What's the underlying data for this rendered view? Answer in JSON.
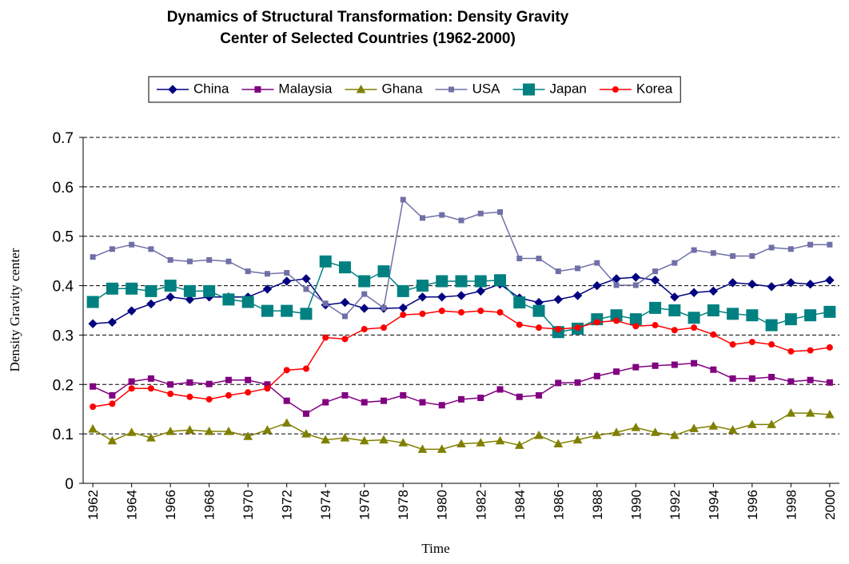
{
  "chart_data": {
    "type": "line",
    "title": "Dynamics of Structural Transformation: Density Gravity Center of Selected Countries (1962-2000)",
    "xlabel": "Time",
    "ylabel": "Density Gravity center",
    "x": [
      1962,
      1963,
      1964,
      1965,
      1966,
      1967,
      1968,
      1969,
      1970,
      1971,
      1972,
      1973,
      1974,
      1975,
      1976,
      1977,
      1978,
      1979,
      1980,
      1981,
      1982,
      1983,
      1984,
      1985,
      1986,
      1987,
      1988,
      1989,
      1990,
      1991,
      1992,
      1993,
      1994,
      1995,
      1996,
      1997,
      1998,
      1999,
      2000
    ],
    "xlim": [
      1961.5,
      2000.5
    ],
    "xticks": [
      1962,
      1964,
      1966,
      1968,
      1970,
      1972,
      1974,
      1976,
      1978,
      1980,
      1982,
      1984,
      1986,
      1988,
      1990,
      1992,
      1994,
      1996,
      1998,
      2000
    ],
    "ylim": [
      0,
      0.7
    ],
    "yticks": [
      0,
      0.1,
      0.2,
      0.3,
      0.4,
      0.5,
      0.6,
      0.7
    ],
    "grid": true,
    "legend": "top",
    "series": [
      {
        "name": "China",
        "color": "#000080",
        "marker": "diamond",
        "marker_size": 5,
        "values": [
          0.323,
          0.326,
          0.349,
          0.363,
          0.377,
          0.372,
          0.377,
          0.377,
          0.377,
          0.393,
          0.409,
          0.414,
          0.361,
          0.366,
          0.354,
          0.354,
          0.355,
          0.377,
          0.377,
          0.38,
          0.389,
          0.403,
          0.375,
          0.366,
          0.372,
          0.38,
          0.4,
          0.414,
          0.417,
          0.411,
          0.377,
          0.386,
          0.389,
          0.406,
          0.403,
          0.398,
          0.406,
          0.403,
          0.411
        ]
      },
      {
        "name": "Malaysia",
        "color": "#800080",
        "marker": "square",
        "marker_size": 3.5,
        "values": [
          0.196,
          0.178,
          0.206,
          0.212,
          0.2,
          0.204,
          0.201,
          0.209,
          0.209,
          0.2,
          0.167,
          0.141,
          0.164,
          0.178,
          0.164,
          0.167,
          0.178,
          0.164,
          0.158,
          0.17,
          0.173,
          0.19,
          0.175,
          0.178,
          0.203,
          0.204,
          0.217,
          0.226,
          0.235,
          0.238,
          0.24,
          0.243,
          0.23,
          0.212,
          0.212,
          0.215,
          0.206,
          0.209,
          0.204
        ]
      },
      {
        "name": "Ghana",
        "color": "#808000",
        "marker": "triangle",
        "marker_size": 5,
        "values": [
          0.11,
          0.086,
          0.103,
          0.092,
          0.105,
          0.108,
          0.105,
          0.105,
          0.095,
          0.108,
          0.122,
          0.1,
          0.088,
          0.092,
          0.086,
          0.088,
          0.082,
          0.069,
          0.069,
          0.08,
          0.082,
          0.086,
          0.077,
          0.097,
          0.08,
          0.088,
          0.097,
          0.103,
          0.113,
          0.103,
          0.097,
          0.111,
          0.116,
          0.108,
          0.119,
          0.119,
          0.142,
          0.142,
          0.139
        ]
      },
      {
        "name": "USA",
        "color": "#7070a8",
        "marker": "square",
        "marker_size": 3,
        "values": [
          0.458,
          0.474,
          0.483,
          0.474,
          0.452,
          0.449,
          0.452,
          0.449,
          0.429,
          0.424,
          0.426,
          0.393,
          0.364,
          0.338,
          0.383,
          0.355,
          0.574,
          0.537,
          0.543,
          0.532,
          0.546,
          0.549,
          0.455,
          0.455,
          0.429,
          0.435,
          0.446,
          0.401,
          0.401,
          0.429,
          0.446,
          0.472,
          0.466,
          0.46,
          0.46,
          0.477,
          0.474,
          0.483,
          0.483
        ]
      },
      {
        "name": "Japan",
        "color": "#008080",
        "marker": "square",
        "marker_size": 7,
        "values": [
          0.367,
          0.394,
          0.394,
          0.389,
          0.4,
          0.389,
          0.389,
          0.372,
          0.367,
          0.349,
          0.349,
          0.343,
          0.449,
          0.437,
          0.409,
          0.429,
          0.389,
          0.4,
          0.409,
          0.409,
          0.409,
          0.411,
          0.366,
          0.349,
          0.306,
          0.313,
          0.332,
          0.34,
          0.332,
          0.355,
          0.35,
          0.335,
          0.35,
          0.343,
          0.34,
          0.32,
          0.332,
          0.34,
          0.347
        ]
      },
      {
        "name": "Korea",
        "color": "#ff0000",
        "marker": "circle",
        "marker_size": 3.5,
        "values": [
          0.155,
          0.161,
          0.192,
          0.192,
          0.181,
          0.175,
          0.17,
          0.178,
          0.184,
          0.192,
          0.229,
          0.232,
          0.295,
          0.292,
          0.312,
          0.315,
          0.341,
          0.343,
          0.349,
          0.346,
          0.349,
          0.346,
          0.321,
          0.315,
          0.312,
          0.315,
          0.326,
          0.329,
          0.318,
          0.32,
          0.31,
          0.315,
          0.301,
          0.281,
          0.286,
          0.281,
          0.267,
          0.269,
          0.275
        ]
      }
    ]
  }
}
